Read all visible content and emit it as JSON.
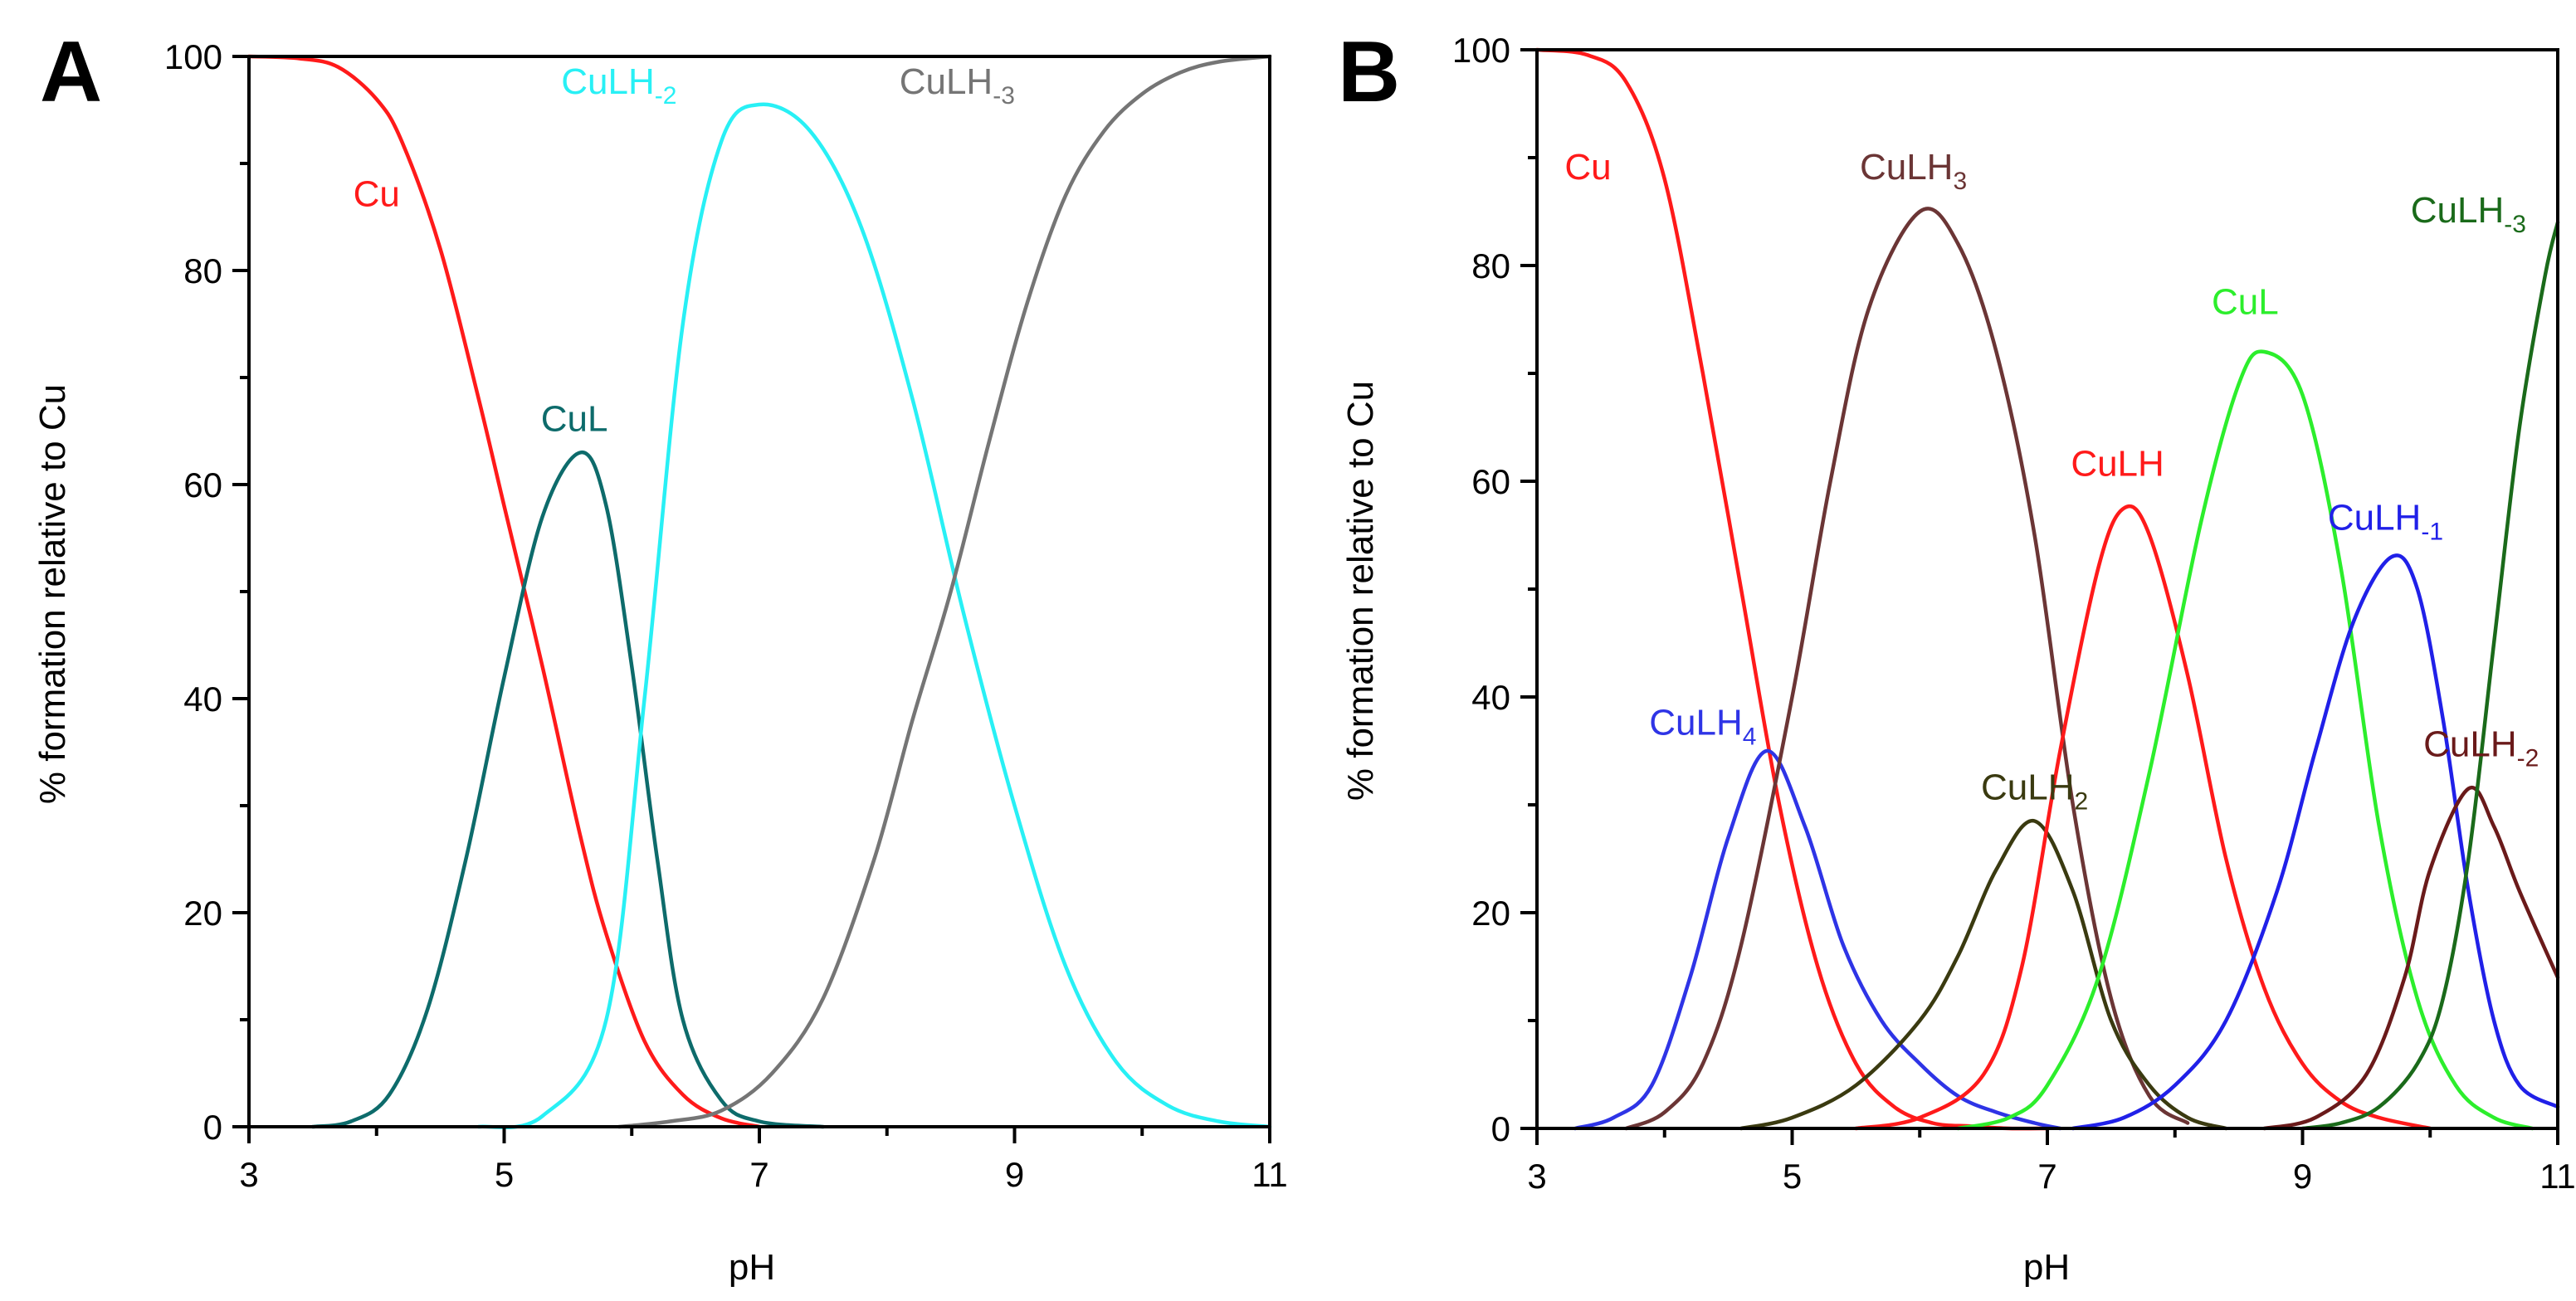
{
  "figure": {
    "background": "#ffffff",
    "axis_color": "#000000"
  },
  "chart_data": [
    {
      "panel_label": "A",
      "type": "line",
      "xlabel": "pH",
      "ylabel": "% formation relative to Cu",
      "xlim": [
        3,
        11
      ],
      "ylim": [
        0,
        100
      ],
      "x_ticks": [
        3,
        5,
        7,
        9,
        11
      ],
      "x_minor_ticks": [
        4,
        6,
        8,
        10
      ],
      "y_ticks": [
        0,
        20,
        40,
        60,
        80,
        100
      ],
      "y_minor_ticks": [
        10,
        30,
        50,
        70,
        90
      ],
      "grid": false,
      "series": [
        {
          "name": "Cu",
          "label": "Cu",
          "label_sub": "",
          "color": "#ff1a1a",
          "label_at": [
            4.0,
            86
          ],
          "x": [
            3.0,
            3.4,
            3.7,
            4.0,
            4.2,
            4.5,
            4.8,
            5.0,
            5.3,
            5.6,
            5.8,
            6.1,
            6.4,
            6.7,
            7.0
          ],
          "y": [
            100,
            99.8,
            99,
            96,
            92,
            82,
            68,
            58,
            43,
            27,
            18,
            8,
            3,
            0.8,
            0
          ]
        },
        {
          "name": "CuL",
          "label": "CuL",
          "label_sub": "",
          "color": "#0d6b6b",
          "label_at": [
            5.55,
            65
          ],
          "x": [
            3.5,
            3.8,
            4.1,
            4.4,
            4.7,
            5.0,
            5.3,
            5.6,
            5.8,
            6.0,
            6.2,
            6.4,
            6.7,
            7.0,
            7.5
          ],
          "y": [
            0,
            0.5,
            3,
            11,
            25,
            42,
            57,
            63,
            58,
            43,
            25,
            10,
            2.5,
            0.5,
            0
          ]
        },
        {
          "name": "CuLH-2",
          "label": "CuLH",
          "label_sub": "-2",
          "color": "#28f0f5",
          "label_at": [
            5.9,
            96.5
          ],
          "x": [
            4.8,
            5.3,
            5.8,
            6.1,
            6.4,
            6.7,
            7.0,
            7.4,
            7.8,
            8.2,
            8.6,
            9.0,
            9.4,
            9.8,
            10.2,
            10.6,
            11.0
          ],
          "y": [
            0,
            1,
            10,
            40,
            75,
            92,
            95.5,
            93,
            84,
            68,
            48,
            30,
            15,
            6,
            2,
            0.5,
            0
          ]
        },
        {
          "name": "CuLH-3",
          "label": "CuLH",
          "label_sub": "-3",
          "color": "#757575",
          "label_at": [
            8.55,
            96.5
          ],
          "x": [
            5.9,
            6.3,
            6.7,
            7.1,
            7.5,
            7.9,
            8.2,
            8.5,
            8.8,
            9.1,
            9.4,
            9.7,
            10.0,
            10.3,
            10.6,
            11.0
          ],
          "y": [
            0,
            0.5,
            1.5,
            5,
            12,
            25,
            38,
            50,
            64,
            77,
            87,
            93,
            96.5,
            98.5,
            99.5,
            100
          ]
        }
      ]
    },
    {
      "panel_label": "B",
      "type": "line",
      "xlabel": "pH",
      "ylabel": "% formation relative to Cu",
      "xlim": [
        3,
        11
      ],
      "ylim": [
        0,
        100
      ],
      "x_ticks": [
        3,
        5,
        7,
        9,
        11
      ],
      "x_minor_ticks": [
        4,
        6,
        8,
        10
      ],
      "y_ticks": [
        0,
        20,
        40,
        60,
        80,
        100
      ],
      "y_minor_ticks": [
        10,
        30,
        50,
        70,
        90
      ],
      "grid": false,
      "series": [
        {
          "name": "Cu",
          "label": "Cu",
          "label_sub": "",
          "color": "#ff1a1a",
          "label_at": [
            3.4,
            88
          ],
          "x": [
            3.0,
            3.4,
            3.7,
            4.0,
            4.3,
            4.6,
            4.9,
            5.2,
            5.5,
            5.8,
            6.1,
            6.4,
            6.7,
            7.0
          ],
          "y": [
            100,
            99.5,
            97,
            88,
            70,
            50,
            30,
            15,
            6,
            2,
            0.5,
            0.2,
            0,
            0
          ]
        },
        {
          "name": "CuLH4",
          "label": "CuLH",
          "label_sub": "4",
          "color": "#2e34e6",
          "label_at": [
            4.3,
            36.5
          ],
          "x": [
            3.3,
            3.6,
            3.9,
            4.2,
            4.5,
            4.8,
            5.1,
            5.4,
            5.7,
            6.0,
            6.3,
            6.6,
            6.9,
            7.1
          ],
          "y": [
            0,
            1,
            4,
            14,
            27,
            35,
            28,
            17,
            10,
            6,
            3,
            1.5,
            0.5,
            0
          ]
        },
        {
          "name": "CuLH3",
          "label": "CuLH",
          "label_sub": "3",
          "color": "#6b3535",
          "label_at": [
            5.95,
            88
          ],
          "x": [
            3.7,
            4.0,
            4.3,
            4.6,
            5.0,
            5.3,
            5.6,
            6.0,
            6.3,
            6.6,
            6.9,
            7.2,
            7.5,
            7.8,
            8.1
          ],
          "y": [
            0,
            1.5,
            6,
            17,
            40,
            60,
            76,
            85,
            82,
            72,
            55,
            30,
            12,
            3,
            0.5
          ]
        },
        {
          "name": "CuLH2",
          "label": "CuLH",
          "label_sub": "2",
          "color": "#3a3a10",
          "label_at": [
            6.9,
            30.5
          ],
          "x": [
            4.6,
            5.0,
            5.5,
            6.0,
            6.3,
            6.6,
            6.9,
            7.2,
            7.5,
            7.8,
            8.1,
            8.4
          ],
          "y": [
            0,
            1,
            4,
            10,
            16,
            24,
            28.5,
            22,
            10,
            4,
            1,
            0
          ]
        },
        {
          "name": "CuLH",
          "label": "CuLH",
          "label_sub": "",
          "color": "#ff1a1a",
          "label_at": [
            7.55,
            60.5
          ],
          "x": [
            5.5,
            6.0,
            6.5,
            6.8,
            7.1,
            7.4,
            7.6,
            7.8,
            8.1,
            8.4,
            8.7,
            9.0,
            9.3,
            9.6,
            10.0
          ],
          "y": [
            0,
            1,
            5,
            15,
            35,
            52,
            57.5,
            55,
            42,
            25,
            13,
            6,
            2.5,
            1,
            0
          ]
        },
        {
          "name": "CuL",
          "label": "CuL",
          "label_sub": "",
          "color": "#2cee2c",
          "label_at": [
            8.55,
            75.5
          ],
          "x": [
            6.3,
            6.7,
            7.0,
            7.4,
            7.8,
            8.2,
            8.5,
            8.7,
            9.0,
            9.3,
            9.6,
            9.9,
            10.2,
            10.5,
            10.8
          ],
          "y": [
            0,
            1,
            4,
            14,
            33,
            56,
            69,
            72,
            68,
            52,
            28,
            12,
            4,
            1,
            0
          ]
        },
        {
          "name": "CuLH-1",
          "label": "CuLH",
          "label_sub": "-1",
          "color": "#2020e8",
          "label_at": [
            9.65,
            55.5
          ],
          "x": [
            7.2,
            7.6,
            8.0,
            8.4,
            8.8,
            9.1,
            9.4,
            9.7,
            9.9,
            10.1,
            10.3,
            10.5,
            10.7,
            11.0
          ],
          "y": [
            0,
            1,
            4,
            10,
            22,
            35,
            47,
            53,
            50,
            38,
            22,
            10,
            4,
            2
          ]
        },
        {
          "name": "CuLH-2",
          "label": "CuLH",
          "label_sub": "-2",
          "color": "#6a1a1a",
          "label_at": [
            10.4,
            34.5
          ],
          "x": [
            8.7,
            9.1,
            9.5,
            9.8,
            10.0,
            10.3,
            10.5,
            10.7,
            11.0
          ],
          "y": [
            0,
            1,
            5,
            14,
            24,
            31.5,
            28,
            22,
            14
          ]
        },
        {
          "name": "CuLH-3",
          "label": "CuLH",
          "label_sub": "-3",
          "color": "#1a6a1a",
          "label_at": [
            10.3,
            84
          ],
          "x": [
            9.0,
            9.3,
            9.6,
            9.9,
            10.1,
            10.3,
            10.5,
            10.7,
            10.9,
            11.0
          ],
          "y": [
            0,
            0.5,
            2,
            6,
            12,
            25,
            45,
            65,
            79,
            84
          ]
        }
      ]
    }
  ]
}
